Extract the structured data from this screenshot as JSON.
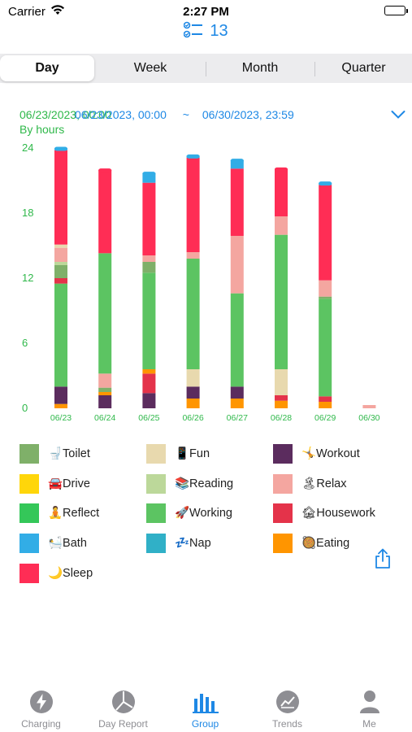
{
  "status_bar": {
    "carrier": "Carrier",
    "time": "2:27 PM"
  },
  "header": {
    "count": "13",
    "icon": "checklist-icon"
  },
  "segments": [
    "Day",
    "Week",
    "Month",
    "Quarter"
  ],
  "selected_segment": "Day",
  "date_range": {
    "from_a": "06/23/2023, 00:00",
    "from_b": "06/23/2023, 00:00",
    "separator": "~",
    "to": "06/30/2023, 23:59"
  },
  "chart_data": {
    "type": "bar",
    "stacked": true,
    "unit_label": "By hours",
    "y_ticks": [
      "24",
      "18",
      "12",
      "6",
      "0"
    ],
    "ylim": [
      0,
      24
    ],
    "categories": [
      "06/23",
      "06/24",
      "06/25",
      "06/26",
      "06/27",
      "06/28",
      "06/29",
      "06/30"
    ],
    "segments_bottom_to_top": [
      [
        {
          "c": "Eating",
          "v": 0.4
        },
        {
          "c": "Workout",
          "v": 1.6
        },
        {
          "c": "Working",
          "v": 9.5
        },
        {
          "c": "Housework",
          "v": 0.5
        },
        {
          "c": "Toilet",
          "v": 1.2
        },
        {
          "c": "Reading",
          "v": 0.3
        },
        {
          "c": "Relax",
          "v": 1.3
        },
        {
          "c": "Fun",
          "v": 0.3
        },
        {
          "c": "Sleep",
          "v": 8.7
        },
        {
          "c": "Bath",
          "v": 0.2
        }
      ],
      [
        {
          "c": "Workout",
          "v": 1.2
        },
        {
          "c": "Eating",
          "v": 0.3
        },
        {
          "c": "Toilet",
          "v": 0.4
        },
        {
          "c": "Relax",
          "v": 1.3
        },
        {
          "c": "Working",
          "v": 11.1
        },
        {
          "c": "Sleep",
          "v": 7.7
        }
      ],
      [
        {
          "c": "Workout",
          "v": 1.4
        },
        {
          "c": "Housework",
          "v": 1.8
        },
        {
          "c": "Eating",
          "v": 0.4
        },
        {
          "c": "Working",
          "v": 8.9
        },
        {
          "c": "Toilet",
          "v": 1.0
        },
        {
          "c": "Relax",
          "v": 0.6
        },
        {
          "c": "Sleep",
          "v": 6.7
        },
        {
          "c": "Bath",
          "v": 0.9
        }
      ],
      [
        {
          "c": "Eating",
          "v": 0.9
        },
        {
          "c": "Workout",
          "v": 1.1
        },
        {
          "c": "Fun",
          "v": 1.6
        },
        {
          "c": "Working",
          "v": 10.2
        },
        {
          "c": "Relax",
          "v": 0.6
        },
        {
          "c": "Sleep",
          "v": 8.7
        },
        {
          "c": "Bath",
          "v": 0.2
        }
      ],
      [
        {
          "c": "Eating",
          "v": 0.9
        },
        {
          "c": "Workout",
          "v": 1.1
        },
        {
          "c": "Working",
          "v": 8.6
        },
        {
          "c": "Relax",
          "v": 5.3
        },
        {
          "c": "Sleep",
          "v": 6.2
        },
        {
          "c": "Bath",
          "v": 0.8
        }
      ],
      [
        {
          "c": "Eating",
          "v": 0.7
        },
        {
          "c": "Housework",
          "v": 0.5
        },
        {
          "c": "Fun",
          "v": 2.4
        },
        {
          "c": "Working",
          "v": 12.4
        },
        {
          "c": "Relax",
          "v": 1.7
        },
        {
          "c": "Sleep",
          "v": 4.4
        }
      ],
      [
        {
          "c": "Eating",
          "v": 0.6
        },
        {
          "c": "Housework",
          "v": 0.5
        },
        {
          "c": "Working",
          "v": 9.0
        },
        {
          "c": "Toilet",
          "v": 0.2
        },
        {
          "c": "Relax",
          "v": 1.5
        },
        {
          "c": "Sleep",
          "v": 8.8
        },
        {
          "c": "Bath",
          "v": 0.2
        }
      ],
      [
        {
          "c": "Relax",
          "v": 0.3
        }
      ]
    ],
    "colors": {
      "Toilet": "#7fb069",
      "Fun": "#e8d9ae",
      "Workout": "#5b2c5e",
      "Drive": "#ffd60a",
      "Reading": "#bcd89a",
      "Relax": "#f4a6a0",
      "Reflect": "#34c759",
      "Working": "#5cc462",
      "Housework": "#e4334a",
      "Bath": "#32ade6",
      "Nap": "#30b0c7",
      "Eating": "#ff9500",
      "Sleep": "#ff2d55"
    }
  },
  "legend": [
    {
      "label": "🚽Toilet",
      "color": "#7fb069"
    },
    {
      "label": "📱Fun",
      "color": "#e8d9ae"
    },
    {
      "label": "🤸Workout",
      "color": "#5b2c5e"
    },
    {
      "label": "🚘Drive",
      "color": "#ffd60a"
    },
    {
      "label": "📚Reading",
      "color": "#bcd89a"
    },
    {
      "label": "🏝Relax",
      "color": "#f4a6a0"
    },
    {
      "label": "🧘Reflect",
      "color": "#34c759"
    },
    {
      "label": "🚀Working",
      "color": "#5cc462"
    },
    {
      "label": "🏚Housework",
      "color": "#e4334a"
    },
    {
      "label": "🛀Bath",
      "color": "#32ade6"
    },
    {
      "label": "💤Nap",
      "color": "#30b0c7"
    },
    {
      "label": "🥘Eating",
      "color": "#ff9500"
    },
    {
      "label": "🌙Sleep",
      "color": "#ff2d55"
    }
  ],
  "tabs": [
    {
      "label": "Charging",
      "icon": "bolt-icon"
    },
    {
      "label": "Day Report",
      "icon": "pie-chart-icon"
    },
    {
      "label": "Group",
      "icon": "bar-chart-icon"
    },
    {
      "label": "Trends",
      "icon": "trend-chart-icon"
    },
    {
      "label": "Me",
      "icon": "person-icon"
    }
  ],
  "active_tab": "Group",
  "accent_color": "#1e88e5",
  "axis_color": "#2fb84a"
}
